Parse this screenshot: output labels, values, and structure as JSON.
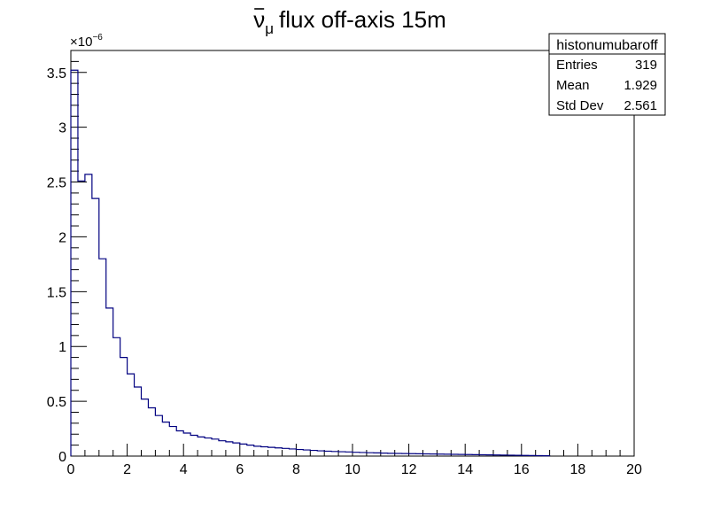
{
  "chart_data": {
    "type": "histogram",
    "title": {
      "bar_symbol": "ν",
      "subscript": "μ",
      "text": "flux off-axis 15m"
    },
    "xlabel": "",
    "ylabel": "",
    "xlim": [
      0,
      20
    ],
    "ylim": [
      0,
      3.7
    ],
    "x_ticks": [
      0,
      2,
      4,
      6,
      8,
      10,
      12,
      14,
      16,
      18,
      20
    ],
    "x_tick_labels": [
      "0",
      "2",
      "4",
      "6",
      "8",
      "10",
      "12",
      "14",
      "16",
      "18",
      "20"
    ],
    "y_ticks": [
      0,
      0.5,
      1,
      1.5,
      2,
      2.5,
      3,
      3.5
    ],
    "y_tick_labels": [
      "0",
      "0.5",
      "1",
      "1.5",
      "2",
      "2.5",
      "3",
      "3.5"
    ],
    "y_multiplier": {
      "base": "×10",
      "exponent": "−6"
    },
    "bin_width": 0.25,
    "bin_start": 0,
    "values": [
      3.52,
      2.51,
      2.57,
      2.35,
      1.8,
      1.35,
      1.08,
      0.9,
      0.75,
      0.63,
      0.52,
      0.44,
      0.37,
      0.31,
      0.27,
      0.23,
      0.21,
      0.19,
      0.175,
      0.165,
      0.155,
      0.14,
      0.13,
      0.12,
      0.11,
      0.1,
      0.09,
      0.085,
      0.08,
      0.075,
      0.07,
      0.065,
      0.06,
      0.056,
      0.052,
      0.048,
      0.045,
      0.042,
      0.04,
      0.038,
      0.035,
      0.033,
      0.031,
      0.029,
      0.027,
      0.025,
      0.024,
      0.023,
      0.022,
      0.021,
      0.02,
      0.019,
      0.018,
      0.017,
      0.016,
      0.015,
      0.014,
      0.013,
      0.012,
      0.011,
      0.01,
      0.009,
      0.008,
      0.007,
      0.006,
      0.005,
      0.004,
      0.003
    ],
    "line_color": "#000080",
    "grid": false,
    "stats_box": {
      "name": "histonumubaroff",
      "rows": [
        {
          "label": "Entries",
          "value": "319"
        },
        {
          "label": "Mean",
          "value": "1.929"
        },
        {
          "label": "Std Dev",
          "value": "2.561"
        }
      ],
      "placement": "top-right"
    }
  }
}
